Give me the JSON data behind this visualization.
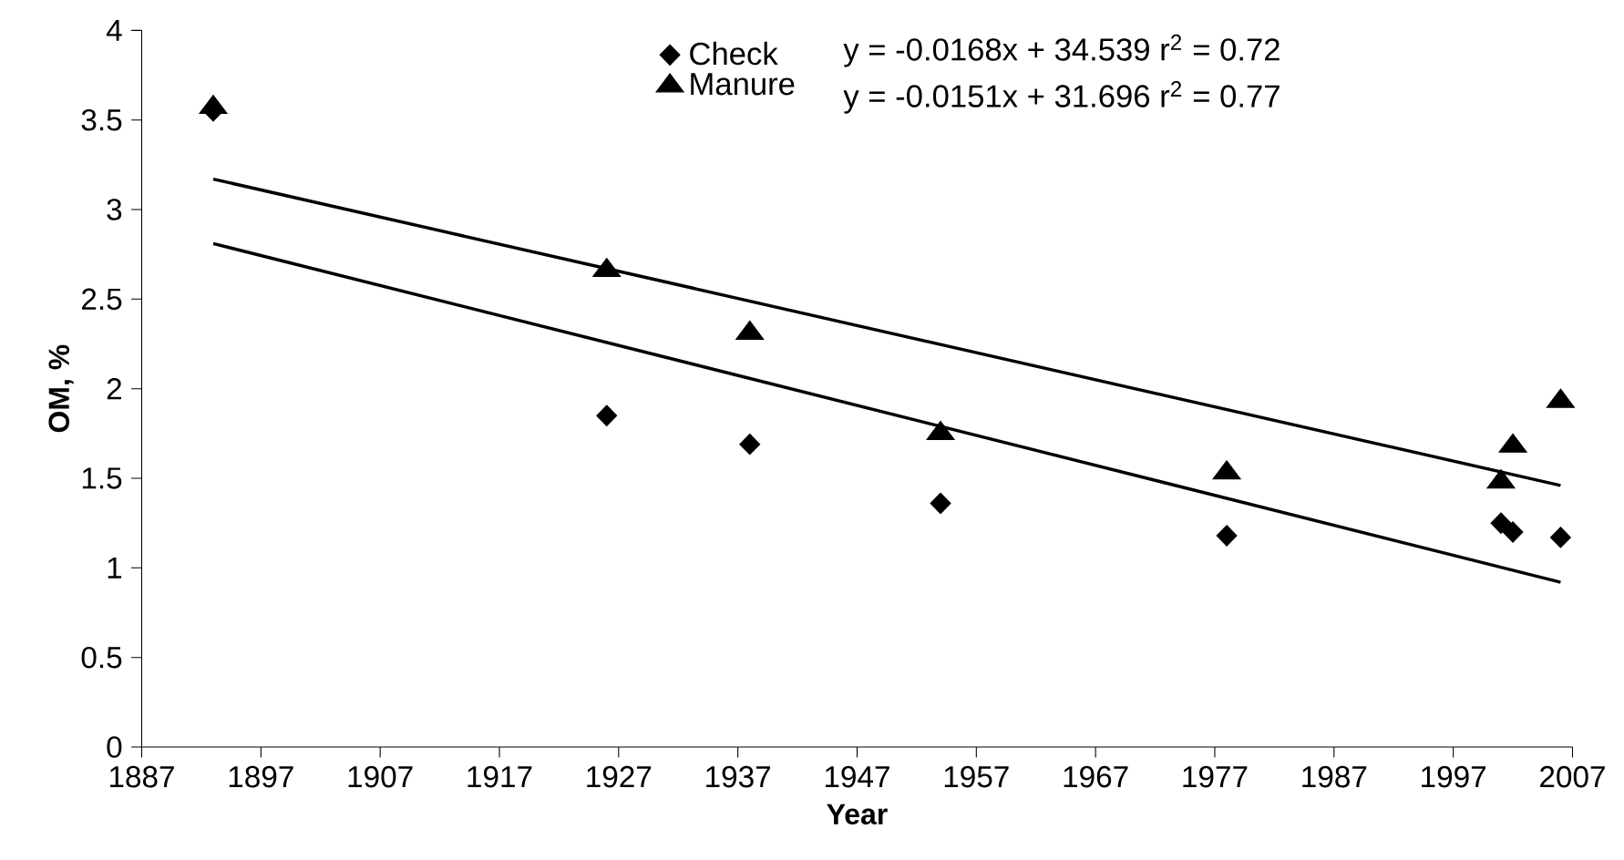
{
  "chart_data": {
    "type": "scatter",
    "xlabel": "Year",
    "ylabel": "OM, %",
    "xlim": [
      1887,
      2007
    ],
    "xticks": [
      1887,
      1897,
      1907,
      1917,
      1927,
      1937,
      1947,
      1957,
      1967,
      1977,
      1987,
      1997,
      2007
    ],
    "ylim": [
      0,
      4
    ],
    "yticks": [
      0,
      0.5,
      1,
      1.5,
      2,
      2.5,
      3,
      3.5,
      4
    ],
    "grid": false,
    "legend": "top",
    "annotations": [
      "y = -0.0168x + 34.539  r$^{2}$ = 0.72",
      "y = -0.0151x + 31.696   r$^{2}$ = 0.77"
    ],
    "series": [
      {
        "name": "Check",
        "marker": "diamond",
        "color": "#000000",
        "x": [
          1893,
          1926,
          1938,
          1954,
          1978,
          2001,
          2002,
          2006
        ],
        "values": [
          3.55,
          1.85,
          1.69,
          1.36,
          1.18,
          1.25,
          1.2,
          1.17
        ]
      },
      {
        "name": "Manure",
        "marker": "triangle",
        "color": "#000000",
        "x": [
          1893,
          1926,
          1938,
          1954,
          1978,
          2001,
          2002,
          2006
        ],
        "values": [
          3.57,
          2.66,
          2.31,
          1.75,
          1.53,
          1.48,
          1.68,
          1.93
        ]
      },
      {
        "type": "line",
        "marker": "none",
        "line_style": "solid",
        "color": "#000000",
        "x": [
          1893,
          2006
        ],
        "values": [
          2.81,
          0.92
        ]
      },
      {
        "type": "line",
        "marker": "none",
        "line_style": "solid",
        "color": "#000000",
        "x": [
          1893,
          2006
        ],
        "values": [
          3.17,
          1.46
        ]
      }
    ]
  }
}
